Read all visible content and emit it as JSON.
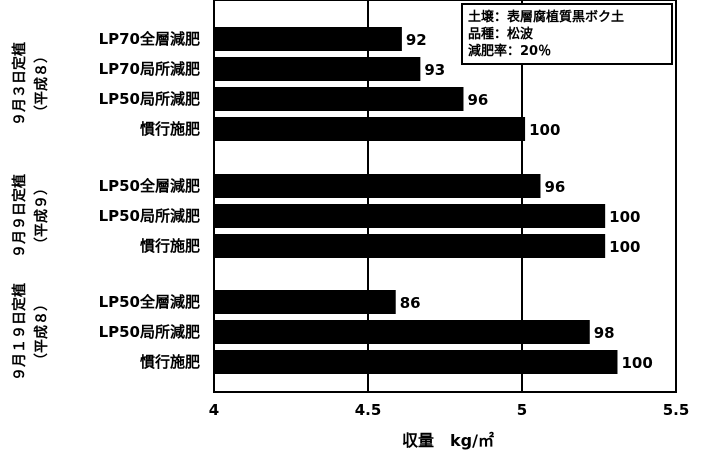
{
  "chart_data": {
    "type": "bar",
    "orientation": "horizontal",
    "xlabel": "収量　kg/㎡",
    "xlim": [
      4,
      5.5
    ],
    "xticks": [
      "4",
      "4.5",
      "5",
      "5.5"
    ],
    "grid": "vertical",
    "legend_placement": "top-right",
    "groups": [
      {
        "label_main": "９月３日定植",
        "label_sub": "（平成８）",
        "bars": [
          {
            "category": "LP70全層減肥",
            "value": 4.61,
            "label": "92"
          },
          {
            "category": "LP70局所減肥",
            "value": 4.67,
            "label": "93"
          },
          {
            "category": "LP50局所減肥",
            "value": 4.81,
            "label": "96"
          },
          {
            "category": "慣行施肥",
            "value": 5.01,
            "label": "100"
          }
        ]
      },
      {
        "label_main": "９月９日定植",
        "label_sub": "（平成９）",
        "bars": [
          {
            "category": "LP50全層減肥",
            "value": 5.06,
            "label": "96"
          },
          {
            "category": "LP50局所減肥",
            "value": 5.27,
            "label": "100"
          },
          {
            "category": "慣行施肥",
            "value": 5.27,
            "label": "100"
          }
        ]
      },
      {
        "label_main": "９月１９日定植",
        "label_sub": "（平成８）",
        "bars": [
          {
            "category": "LP50全層減肥",
            "value": 4.59,
            "label": "86"
          },
          {
            "category": "LP50局所減肥",
            "value": 5.22,
            "label": "98"
          },
          {
            "category": "慣行施肥",
            "value": 5.31,
            "label": "100"
          }
        ]
      }
    ],
    "annotation": [
      "土壌：表層腐植質黒ボク土",
      "品種：松波",
      "減肥率：20％"
    ]
  }
}
